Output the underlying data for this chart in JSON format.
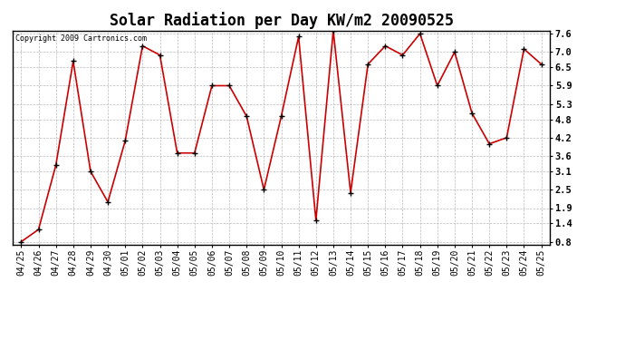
{
  "title": "Solar Radiation per Day KW/m2 20090525",
  "copyright": "Copyright 2009 Cartronics.com",
  "x_labels": [
    "04/25",
    "04/26",
    "04/27",
    "04/28",
    "04/29",
    "04/30",
    "05/01",
    "05/02",
    "05/03",
    "05/04",
    "05/05",
    "05/06",
    "05/07",
    "05/08",
    "05/09",
    "05/10",
    "05/11",
    "05/12",
    "05/13",
    "05/14",
    "05/15",
    "05/16",
    "05/17",
    "05/18",
    "05/19",
    "05/20",
    "05/21",
    "05/22",
    "05/23",
    "05/24",
    "05/25"
  ],
  "y_values": [
    0.8,
    1.2,
    3.3,
    6.7,
    3.1,
    2.1,
    4.1,
    7.2,
    6.9,
    3.7,
    3.7,
    5.9,
    5.9,
    4.9,
    2.5,
    4.9,
    7.5,
    1.5,
    7.7,
    2.4,
    6.6,
    7.2,
    6.9,
    7.6,
    5.9,
    7.0,
    5.0,
    4.0,
    4.2,
    7.1,
    6.6
  ],
  "line_color": "#cc0000",
  "marker": "+",
  "marker_size": 5,
  "marker_color": "#000000",
  "bg_color": "#ffffff",
  "plot_bg_color": "#ffffff",
  "grid_color": "#bbbbbb",
  "ylim_min": 0.8,
  "ylim_max": 7.6,
  "yticks": [
    0.8,
    1.4,
    1.9,
    2.5,
    3.1,
    3.6,
    4.2,
    4.8,
    5.3,
    5.9,
    6.5,
    7.0,
    7.6
  ],
  "title_fontsize": 12,
  "tick_fontsize": 7,
  "copyright_fontsize": 6
}
